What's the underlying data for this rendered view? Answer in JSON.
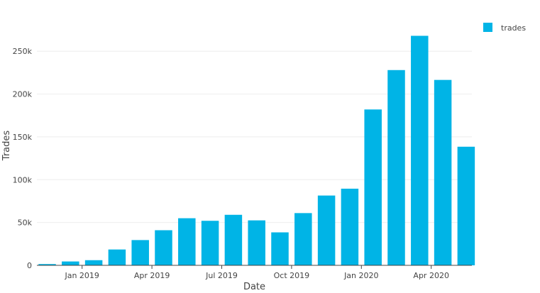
{
  "chart_data": {
    "type": "bar",
    "xlabel": "Date",
    "ylabel": "Trades",
    "ylim": [
      0,
      280000
    ],
    "grid": true,
    "legend_position": "top-right",
    "x_tick_labels": [
      "Jan 2019",
      "Apr 2019",
      "Jul 2019",
      "Oct 2019",
      "Jan 2020",
      "Apr 2020"
    ],
    "y_tick_labels": [
      "0",
      "50k",
      "100k",
      "150k",
      "200k",
      "250k"
    ],
    "y_tick_values": [
      0,
      50000,
      100000,
      150000,
      200000,
      250000
    ],
    "categories": [
      "2018-11",
      "2018-12",
      "2019-01",
      "2019-02",
      "2019-03",
      "2019-04",
      "2019-05",
      "2019-06",
      "2019-07",
      "2019-08",
      "2019-09",
      "2019-10",
      "2019-11",
      "2019-12",
      "2020-01",
      "2020-02",
      "2020-03",
      "2020-04",
      "2020-05"
    ],
    "series": [
      {
        "name": "trades",
        "color": "#00b4e6",
        "values": [
          1500,
          4500,
          6000,
          18500,
          29500,
          41000,
          55000,
          52000,
          59000,
          52500,
          38500,
          61000,
          81500,
          89500,
          182000,
          228000,
          268000,
          216500,
          138500
        ]
      }
    ]
  }
}
